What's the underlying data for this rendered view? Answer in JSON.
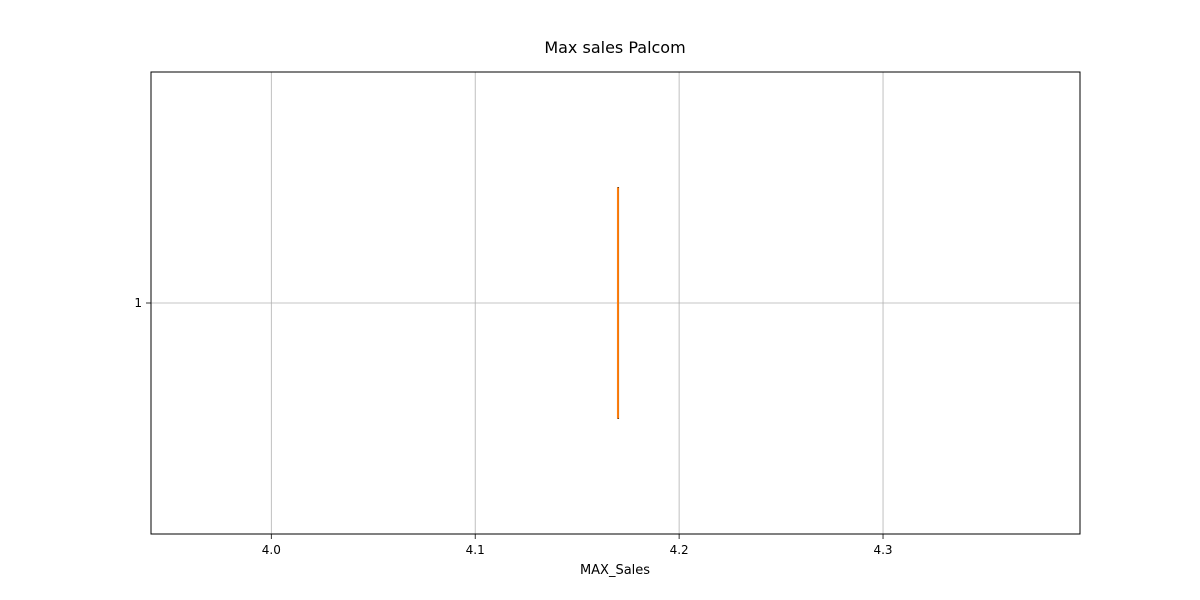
{
  "chart_data": {
    "type": "boxplot",
    "orientation": "horizontal",
    "title": "Max sales Palcom",
    "xlabel": "MAX_Sales",
    "ylabel": "",
    "xlim": [
      3.941,
      4.3966
    ],
    "xticks": [
      4.0,
      4.1,
      4.2,
      4.3
    ],
    "xtick_labels": [
      "4.0",
      "4.1",
      "4.2",
      "4.3"
    ],
    "yticks": [
      1
    ],
    "ytick_labels": [
      "1"
    ],
    "grid": true,
    "series": [
      {
        "position": 1,
        "min": 4.17,
        "q1": 4.17,
        "median": 4.17,
        "q3": 4.17,
        "max": 4.17
      }
    ],
    "colors": {
      "box": "#000000",
      "median": "#ff7f0e",
      "grid": "#b0b0b0",
      "axes": "#000000"
    }
  }
}
